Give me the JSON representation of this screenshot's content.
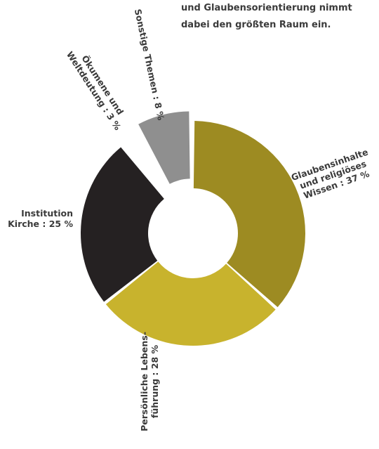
{
  "intro": {
    "lines": [
      "und Glaubensorientierung nimmt",
      "dabei den größten Raum ein."
    ]
  },
  "chart_data": {
    "type": "pie",
    "donut": true,
    "title": "",
    "unit": "%",
    "slices": [
      {
        "label_lines": [
          "Glaubensinhalte",
          "und religiöses",
          "Wissen : 37 %"
        ],
        "value": 37,
        "color": "#9d8b22",
        "exploded": false
      },
      {
        "label_lines": [
          "Persönliche Lebens-",
          "führung : 28 %"
        ],
        "value": 28,
        "color": "#c8b32d",
        "exploded": false
      },
      {
        "label_lines": [
          "Institution",
          "Kirche : 25 %"
        ],
        "value": 25,
        "color": "#252122",
        "exploded": false
      },
      {
        "label_lines": [
          "Ökumene und",
          "Weltdeutung : 3 %"
        ],
        "value": 3,
        "color": "#ffffff",
        "exploded": false
      },
      {
        "label_lines": [
          "Sonstige Themen : 8 %"
        ],
        "value": 8,
        "color": "#8f8f8f",
        "exploded": true
      }
    ]
  }
}
